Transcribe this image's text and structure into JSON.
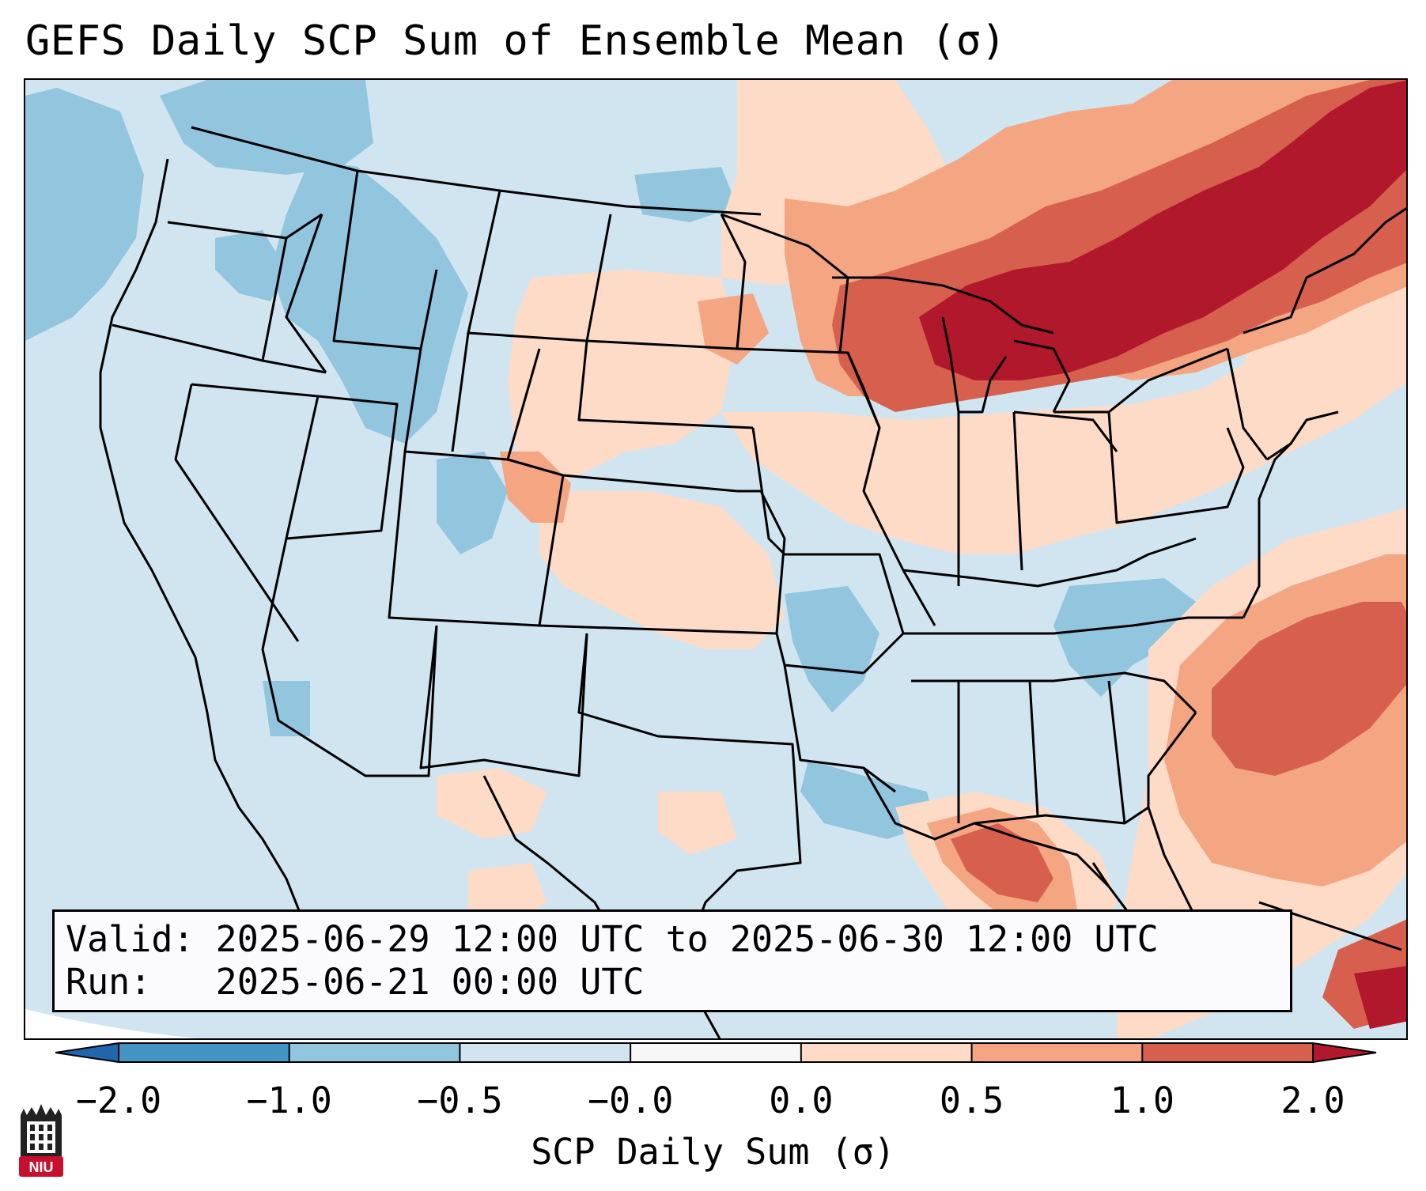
{
  "title": "GEFS Daily SCP Sum of Ensemble Mean (σ)",
  "info": {
    "valid_label": "Valid:",
    "valid_value": "2025-06-29 12:00 UTC to 2025-06-30 12:00 UTC",
    "run_label": "Run:",
    "run_value": "2025-06-21 00:00 UTC"
  },
  "colorbar": {
    "label": "SCP Daily Sum (σ)",
    "ticks": [
      "−2.0",
      "−1.0",
      "−0.5",
      "−0.0",
      "0.0",
      "0.5",
      "1.0",
      "2.0"
    ],
    "colors": [
      "#4393c3",
      "#92c5de",
      "#d1e5f0",
      "#f7f7f7",
      "#fddbc7",
      "#f4a582",
      "#d6604d",
      "#b2182b"
    ],
    "under_color": "#2166ac",
    "over_color": "#b2182b"
  },
  "logo": {
    "text": "NIU",
    "icon": "university-tower-icon",
    "color": "#c8102e"
  },
  "map": {
    "background_color": "#d1e5f0",
    "regions": [
      {
        "name": "pacific-northwest-low",
        "level": "−1.0"
      },
      {
        "name": "idaho-montana-low",
        "level": "−1.0"
      },
      {
        "name": "great-lakes-high",
        "level": "2.0"
      },
      {
        "name": "new-england-high",
        "level": "1.0"
      },
      {
        "name": "atlantic-offshore-high",
        "level": "1.0"
      },
      {
        "name": "florida-high",
        "level": "1.0"
      },
      {
        "name": "carolinas-low",
        "level": "−1.0"
      },
      {
        "name": "plains-weak-positive",
        "level": "0.0"
      }
    ]
  }
}
